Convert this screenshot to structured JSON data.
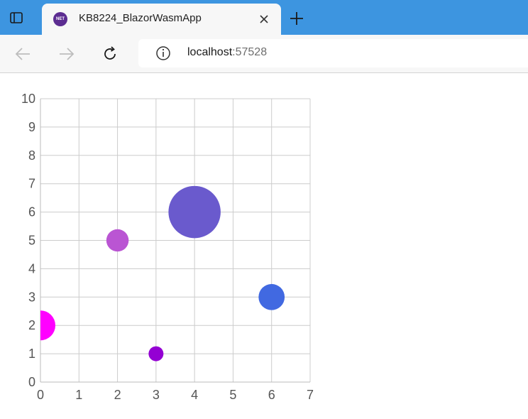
{
  "browser": {
    "tab": {
      "title": "KB8224_BlazorWasmApp",
      "favicon_text": "NET",
      "favicon_color": "#5c2d91"
    },
    "address": {
      "host": "localhost",
      "rest": ":57528"
    },
    "icons": {
      "window": "window-icon",
      "close": "close-icon",
      "new_tab": "plus-icon",
      "back": "back-arrow-icon",
      "forward": "forward-arrow-icon",
      "refresh": "refresh-icon",
      "info": "info-icon"
    },
    "accent_color": "#3d95e0"
  },
  "chart_data": {
    "type": "scatter",
    "title": "",
    "xlabel": "",
    "ylabel": "",
    "xlim": [
      0,
      7
    ],
    "ylim": [
      0,
      10
    ],
    "xticks": [
      0,
      1,
      2,
      3,
      4,
      5,
      6,
      7
    ],
    "yticks": [
      0,
      1,
      2,
      3,
      4,
      5,
      6,
      7,
      8,
      9,
      10
    ],
    "grid": true,
    "legend": "none",
    "bubbles": [
      {
        "x": 0,
        "y": 2,
        "size": 2,
        "color": "#ff00ff"
      },
      {
        "x": 2,
        "y": 5,
        "size": 1.5,
        "color": "#ba55d3"
      },
      {
        "x": 3,
        "y": 1,
        "size": 1,
        "color": "#9400d3"
      },
      {
        "x": 4,
        "y": 6,
        "size": 3.5,
        "color": "#6a5acd"
      },
      {
        "x": 6,
        "y": 3,
        "size": 1.75,
        "color": "#4169e1"
      }
    ]
  }
}
